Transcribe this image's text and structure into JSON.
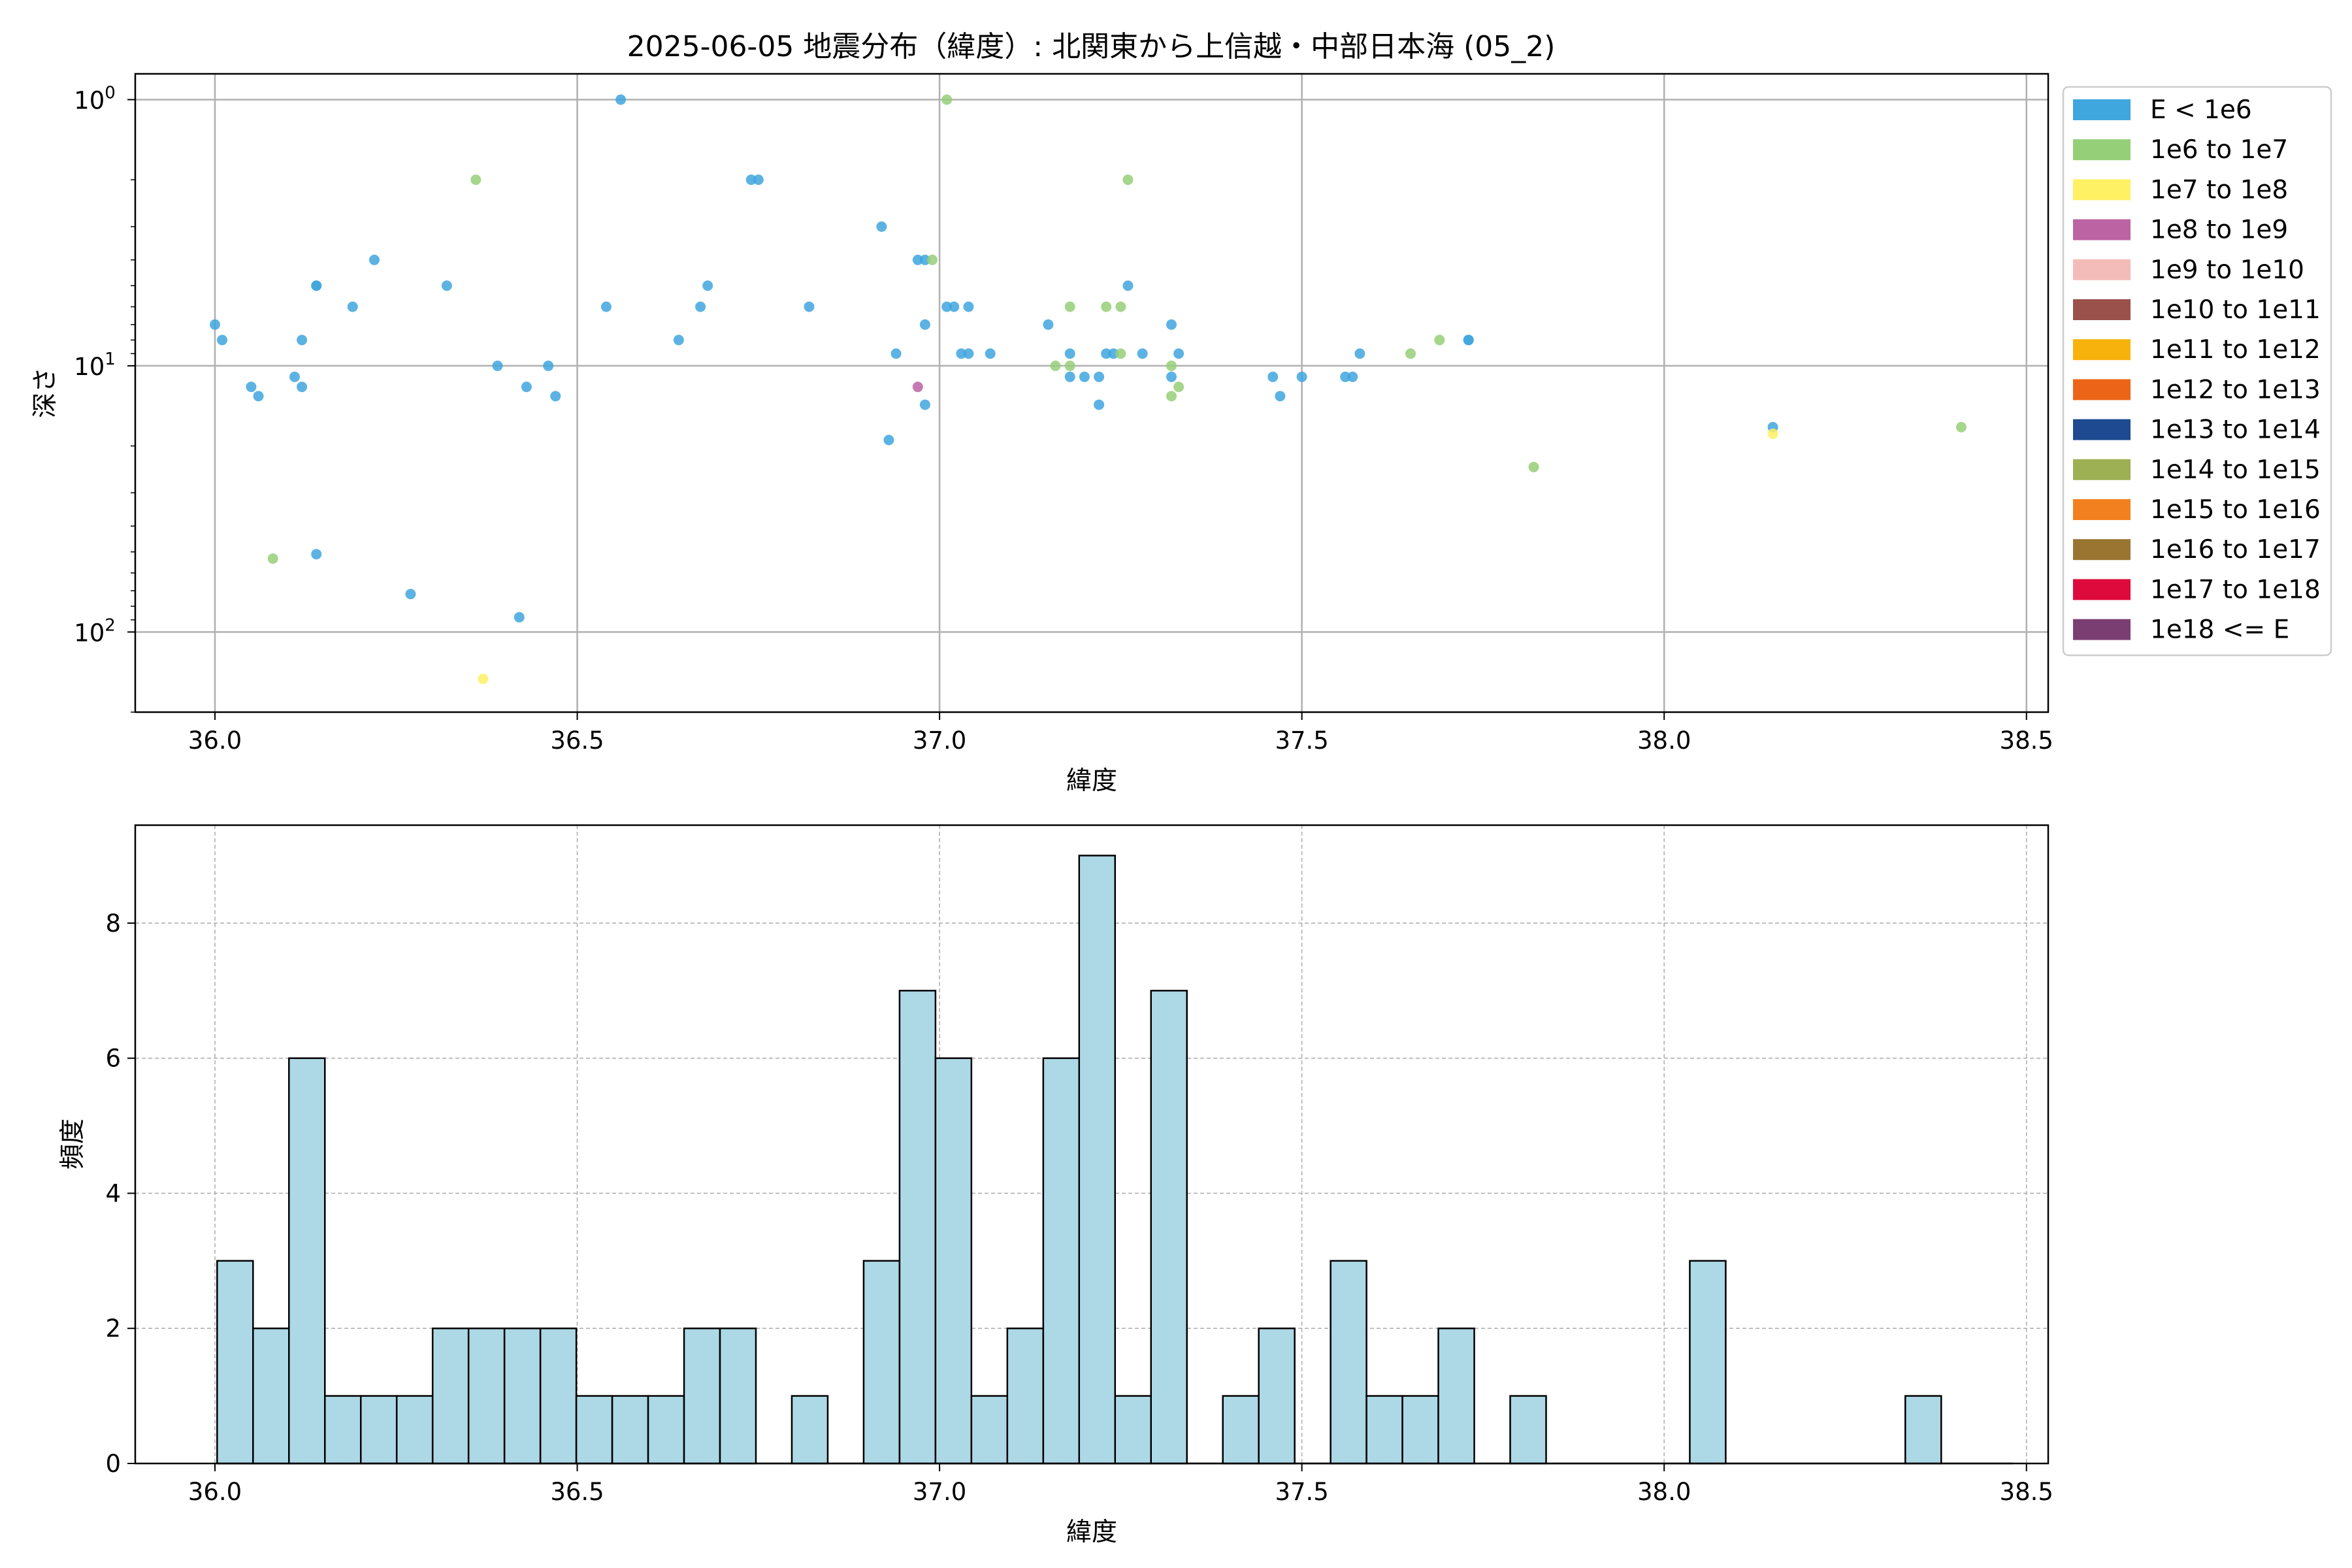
{
  "title": "2025-06-05 地震分布（緯度）: 北関東から上信越・中部日本海 (05_2)",
  "scatter_ylabel": "深さ",
  "hist_ylabel": "頻度",
  "legend": [
    {
      "label": "E < 1e6",
      "color": "#3fa6de"
    },
    {
      "label": "1e6 to 1e7",
      "color": "#95cf78"
    },
    {
      "label": "1e7 to 1e8",
      "color": "#fff064"
    },
    {
      "label": "1e8 to 1e9",
      "color": "#bc63a3"
    },
    {
      "label": "1e9 to 1e10",
      "color": "#f4bcb8"
    },
    {
      "label": "1e10 to 1e11",
      "color": "#9a514b"
    },
    {
      "label": "1e11 to 1e12",
      "color": "#f7b20c"
    },
    {
      "label": "1e12 to 1e13",
      "color": "#ec6418"
    },
    {
      "label": "1e13 to 1e14",
      "color": "#1d4a90"
    },
    {
      "label": "1e14 to 1e15",
      "color": "#9db054"
    },
    {
      "label": "1e15 to 1e16",
      "color": "#f2801e"
    },
    {
      "label": "1e16 to 1e17",
      "color": "#9a7531"
    },
    {
      "label": "1e17 to 1e18",
      "color": "#de0a3b"
    },
    {
      "label": "1e18 <= E",
      "color": "#7b3e72"
    }
  ],
  "chart_data": [
    {
      "type": "scatter",
      "xlabel": "緯度",
      "ylabel": "深さ",
      "xlim": [
        35.89,
        38.53
      ],
      "ylim": [
        200,
        0.8
      ],
      "yscale": "log",
      "y_inverted": true,
      "xticks": [
        "36.0",
        "36.5",
        "37.0",
        "37.5",
        "38.0",
        "38.5"
      ],
      "yticks": [
        {
          "value": 1,
          "base": "10",
          "exp": "0"
        },
        {
          "value": 10,
          "base": "10",
          "exp": "1"
        },
        {
          "value": 100,
          "base": "10",
          "exp": "2"
        }
      ],
      "grid": true,
      "legend_position": "outside-right",
      "series": [
        {
          "name": "E < 1e6",
          "color": "#3fa6de",
          "points": [
            [
              36.0,
              7
            ],
            [
              36.01,
              8
            ],
            [
              36.05,
              12
            ],
            [
              36.06,
              13
            ],
            [
              36.11,
              11
            ],
            [
              36.12,
              12
            ],
            [
              36.12,
              8
            ],
            [
              36.14,
              5
            ],
            [
              36.14,
              5
            ],
            [
              36.14,
              51
            ],
            [
              36.19,
              6
            ],
            [
              36.22,
              4
            ],
            [
              36.27,
              72
            ],
            [
              36.32,
              5
            ],
            [
              36.39,
              10
            ],
            [
              36.42,
              88
            ],
            [
              36.43,
              12
            ],
            [
              36.46,
              10
            ],
            [
              36.47,
              13
            ],
            [
              36.54,
              6
            ],
            [
              36.56,
              1
            ],
            [
              36.64,
              8
            ],
            [
              36.67,
              6
            ],
            [
              36.68,
              5
            ],
            [
              36.74,
              2
            ],
            [
              36.75,
              2
            ],
            [
              36.82,
              6
            ],
            [
              36.92,
              3
            ],
            [
              36.93,
              19
            ],
            [
              36.94,
              9
            ],
            [
              36.97,
              4
            ],
            [
              36.98,
              4
            ],
            [
              36.98,
              7
            ],
            [
              36.98,
              14
            ],
            [
              37.01,
              6
            ],
            [
              37.02,
              6
            ],
            [
              37.03,
              9
            ],
            [
              37.04,
              9
            ],
            [
              37.04,
              6
            ],
            [
              37.07,
              9
            ],
            [
              37.15,
              7
            ],
            [
              37.18,
              9
            ],
            [
              37.18,
              11
            ],
            [
              37.2,
              11
            ],
            [
              37.22,
              11
            ],
            [
              37.22,
              14
            ],
            [
              37.23,
              9
            ],
            [
              37.24,
              9
            ],
            [
              37.26,
              5
            ],
            [
              37.28,
              9
            ],
            [
              37.32,
              7
            ],
            [
              37.32,
              11
            ],
            [
              37.33,
              9
            ],
            [
              37.46,
              11
            ],
            [
              37.47,
              13
            ],
            [
              37.5,
              11
            ],
            [
              37.56,
              11
            ],
            [
              37.57,
              11
            ],
            [
              37.58,
              9
            ],
            [
              37.73,
              8
            ],
            [
              37.73,
              8
            ],
            [
              38.15,
              17
            ]
          ]
        },
        {
          "name": "1e6 to 1e7",
          "color": "#95cf78",
          "points": [
            [
              36.08,
              53
            ],
            [
              36.36,
              2
            ],
            [
              36.99,
              4
            ],
            [
              37.01,
              1
            ],
            [
              37.16,
              10
            ],
            [
              37.18,
              6
            ],
            [
              37.18,
              10
            ],
            [
              37.23,
              6
            ],
            [
              37.25,
              6
            ],
            [
              37.25,
              9
            ],
            [
              37.26,
              2
            ],
            [
              37.32,
              13
            ],
            [
              37.32,
              10
            ],
            [
              37.33,
              12
            ],
            [
              37.65,
              9
            ],
            [
              37.69,
              8
            ],
            [
              37.82,
              24
            ],
            [
              38.41,
              17
            ]
          ]
        },
        {
          "name": "1e7 to 1e8",
          "color": "#fff064",
          "points": [
            [
              36.37,
              150
            ],
            [
              38.15,
              18
            ]
          ]
        },
        {
          "name": "1e8 to 1e9",
          "color": "#bc63a3",
          "points": [
            [
              36.97,
              12
            ]
          ]
        }
      ]
    },
    {
      "type": "bar",
      "xlabel": "緯度",
      "ylabel": "頻度",
      "xlim": [
        35.89,
        38.53
      ],
      "ylim": [
        0,
        9.45
      ],
      "xticks": [
        "36.0",
        "36.5",
        "37.0",
        "37.5",
        "38.0",
        "38.5"
      ],
      "yticks": [
        "0",
        "2",
        "4",
        "6",
        "8"
      ],
      "grid": true,
      "bin_start": 36.003,
      "bin_width": 0.04957,
      "values": [
        3,
        2,
        6,
        1,
        1,
        1,
        2,
        2,
        2,
        2,
        1,
        1,
        1,
        2,
        2,
        0,
        1,
        0,
        3,
        7,
        6,
        1,
        2,
        6,
        9,
        1,
        7,
        0,
        1,
        2,
        0,
        3,
        1,
        1,
        2,
        0,
        1,
        0,
        0,
        0,
        0,
        3,
        0,
        0,
        0,
        0,
        0,
        1,
        0,
        0
      ],
      "bar_color": "#add8e6"
    }
  ]
}
